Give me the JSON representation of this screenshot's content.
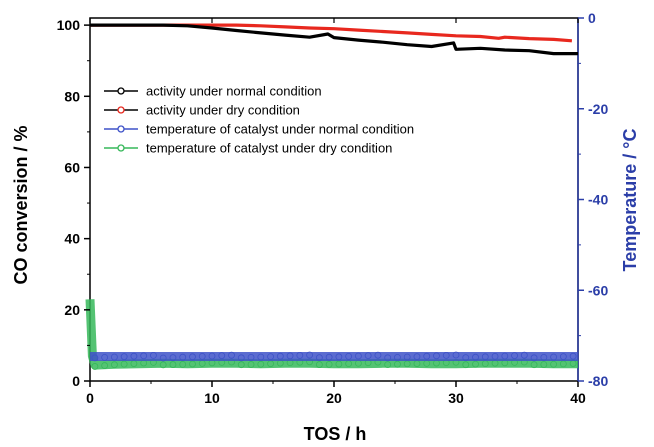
{
  "colors": {
    "normal_activity": "#000000",
    "dry_activity": "#e8281e",
    "normal_temperature": "#3e52c8",
    "dry_temperature": "#36b85a",
    "right_axis": "#2b3ea8"
  },
  "chart_data": {
    "type": "line",
    "xlabel": "TOS / h",
    "ylabel": "CO conversion / %",
    "y2label": "Temperature / °C",
    "xlim": [
      0,
      40
    ],
    "ylim": [
      0,
      102
    ],
    "y2lim": [
      -80,
      0
    ],
    "xticks": [
      "0",
      "10",
      "20",
      "30",
      "40"
    ],
    "yticks": [
      "0",
      "20",
      "40",
      "60",
      "80",
      "100"
    ],
    "y2ticks": [
      "0",
      "-20",
      "-40",
      "-60",
      "-80"
    ],
    "grid": false,
    "legend_position": "upper-left",
    "series": [
      {
        "name": "activity under normal condition",
        "axis": "left",
        "x": [
          0,
          2,
          4,
          6,
          8,
          10,
          12,
          14,
          16,
          18,
          19.5,
          20,
          22,
          24,
          26,
          28,
          29.8,
          30,
          32,
          34,
          36,
          38,
          40
        ],
        "y": [
          100,
          100,
          100,
          100,
          99.8,
          99.2,
          98.5,
          97.8,
          97.2,
          96.6,
          97.5,
          96.5,
          95.8,
          95.2,
          94.5,
          94,
          95,
          93.2,
          93.5,
          93,
          92.8,
          92,
          92
        ]
      },
      {
        "name": "activity under dry condition",
        "axis": "left",
        "x": [
          0,
          4,
          8,
          10,
          12,
          14,
          16,
          18,
          20,
          22,
          24,
          26,
          28,
          30,
          32,
          33.5,
          34,
          36,
          38,
          39.5
        ],
        "y": [
          100,
          100,
          100,
          100,
          100,
          99.8,
          99.5,
          99.2,
          99,
          98.6,
          98.2,
          97.8,
          97.4,
          97,
          96.8,
          96.3,
          96.6,
          96.2,
          96,
          95.6
        ]
      },
      {
        "name": "temperature of catalyst under normal condition",
        "axis": "right",
        "x": [
          0,
          2,
          4,
          6,
          8,
          10,
          12,
          14,
          16,
          18,
          20,
          22,
          24,
          26,
          28,
          30,
          32,
          34,
          36,
          38,
          40
        ],
        "y": [
          -74.6,
          -74.6,
          -74.6,
          -74.6,
          -74.6,
          -74.6,
          -74.6,
          -74.6,
          -74.6,
          -74.6,
          -74.6,
          -74.6,
          -74.6,
          -74.6,
          -74.6,
          -74.6,
          -74.6,
          -74.6,
          -74.6,
          -74.6,
          -74.6
        ]
      },
      {
        "name": "temperature of catalyst under dry condition",
        "axis": "right",
        "x": [
          0,
          0.2,
          0.4,
          2,
          4,
          6,
          8,
          10,
          12,
          14,
          16,
          18,
          20,
          22,
          24,
          26,
          28,
          30,
          32,
          34,
          36,
          38,
          40
        ],
        "y": [
          -62,
          -74.5,
          -76.5,
          -76.3,
          -76.2,
          -76.1,
          -76.2,
          -76.1,
          -76.1,
          -76.2,
          -76.1,
          -76.1,
          -76.2,
          -76.2,
          -76.1,
          -76.1,
          -76.2,
          -76.2,
          -76.1,
          -76.1,
          -76.1,
          -76.2,
          -76.2
        ]
      }
    ]
  }
}
